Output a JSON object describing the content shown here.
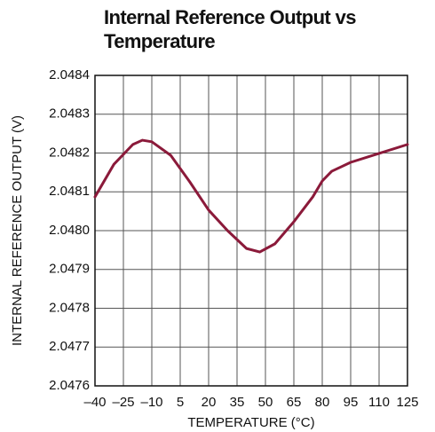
{
  "chart_data": {
    "type": "line",
    "title": "Internal Reference Output vs Temperature",
    "xlabel": "TEMPERATURE (°C)",
    "ylabel": "INTERNAL REFERENCE OUTPUT (V)",
    "x": [
      -40,
      -30,
      -20,
      -15,
      -10,
      0,
      10,
      20,
      30,
      40,
      47,
      55,
      65,
      75,
      80,
      85,
      95,
      110,
      125
    ],
    "series": [
      {
        "color": "#8b1a3a",
        "values": [
          2.048087,
          2.048171,
          2.048222,
          2.048233,
          2.048229,
          2.048194,
          2.048126,
          2.048053,
          2.048,
          2.047954,
          2.047945,
          2.047966,
          2.048023,
          2.048087,
          2.048128,
          2.048153,
          2.048176,
          2.048199,
          2.048222
        ]
      }
    ],
    "xlim": [
      -40,
      125
    ],
    "xticks": [
      {
        "value": -40,
        "label": "–40"
      },
      {
        "value": -25,
        "label": "–25"
      },
      {
        "value": -10,
        "label": "–10"
      },
      5,
      20,
      35,
      50,
      65,
      80,
      95,
      110,
      125
    ],
    "ylim": [
      2.0476,
      2.0484
    ],
    "yticks": [
      2.0476,
      2.0477,
      2.0478,
      2.0479,
      {
        "value": 2.048,
        "label": "2.0480"
      },
      2.0481,
      2.0482,
      2.0483,
      2.0484
    ],
    "grid": true
  }
}
